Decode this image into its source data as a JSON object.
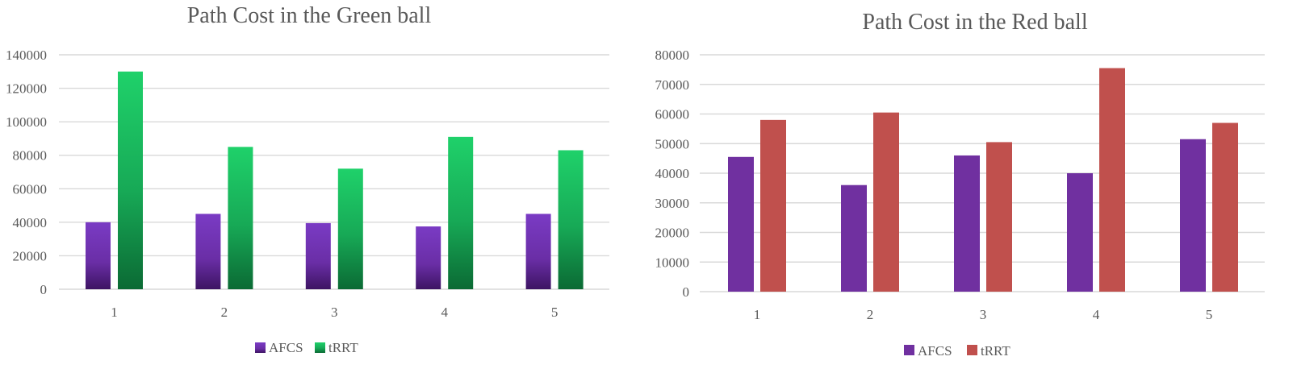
{
  "chart_data": [
    {
      "type": "bar",
      "title": "Path Cost in the Green ball",
      "categories": [
        "1",
        "2",
        "3",
        "4",
        "5"
      ],
      "series": [
        {
          "name": "AFCS",
          "values": [
            40000,
            45000,
            39500,
            37500,
            45000
          ],
          "color": "#7030a0"
        },
        {
          "name": "tRRT",
          "values": [
            130000,
            85000,
            72000,
            91000,
            83000
          ],
          "color": "#1fd16a"
        }
      ],
      "ylim": [
        0,
        140000
      ],
      "yticks": [
        "0",
        "20000",
        "40000",
        "60000",
        "80000",
        "100000",
        "120000",
        "140000"
      ],
      "grid": true,
      "legend": "bottom",
      "xlabel": "",
      "ylabel": ""
    },
    {
      "type": "bar",
      "title": "Path Cost in the Red ball",
      "categories": [
        "1",
        "2",
        "3",
        "4",
        "5"
      ],
      "series": [
        {
          "name": "AFCS",
          "values": [
            45500,
            36000,
            46000,
            40000,
            51500
          ],
          "color": "#7030a0"
        },
        {
          "name": "tRRT",
          "values": [
            58000,
            60500,
            50500,
            75500,
            57000
          ],
          "color": "#c0504d"
        }
      ],
      "ylim": [
        0,
        80000
      ],
      "yticks": [
        "0",
        "10000",
        "20000",
        "30000",
        "40000",
        "50000",
        "60000",
        "70000",
        "80000"
      ],
      "grid": true,
      "legend": "bottom",
      "xlabel": "",
      "ylabel": ""
    }
  ]
}
